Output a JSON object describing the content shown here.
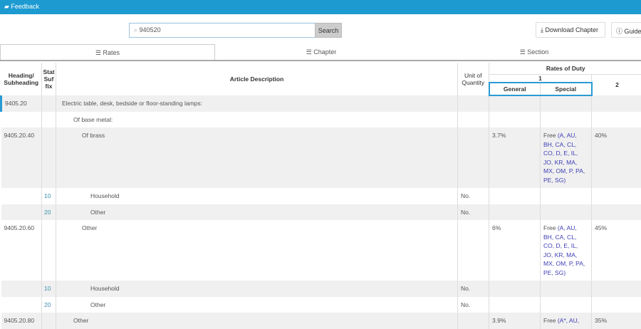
{
  "header": {
    "feedback": "Feedback"
  },
  "search": {
    "value": "940520",
    "button": "Search"
  },
  "actions": {
    "download": "Download Chapter",
    "guide": "Guide"
  },
  "tabs": [
    {
      "label": "Rates",
      "active": true
    },
    {
      "label": "Chapter"
    },
    {
      "label": "Section"
    }
  ],
  "table": {
    "headers": {
      "heading": "Heading/ Subheading",
      "stat": "Stat Suf fix",
      "desc": "Article Description",
      "unit": "Unit of Quantity",
      "rates": "Rates of Duty",
      "col1": "1",
      "general": "General",
      "special": "Special",
      "col2": "2"
    },
    "rows": [
      {
        "heading": "9405.20",
        "stat": "",
        "desc": "Electric table, desk, bedside or floor-standing lamps:",
        "indent": 0,
        "unit": "",
        "general": "",
        "special": "",
        "col2": ""
      },
      {
        "heading": "",
        "stat": "",
        "desc": "Of base metal:",
        "indent": 1,
        "unit": "",
        "general": "",
        "special": "",
        "col2": ""
      },
      {
        "heading": "9405.20.40",
        "stat": "",
        "desc": "Of brass",
        "indent": 2,
        "unit": "",
        "general": "3.7%",
        "special": "Free (A, AU, BH, CA, CL, CO, D, E, IL, JO, KR, MA, MX, OM, P, PA, PE, SG)",
        "col2": "40%"
      },
      {
        "heading": "",
        "stat": "10",
        "desc": "Household",
        "indent": 3,
        "unit": "No.",
        "general": "",
        "special": "",
        "col2": ""
      },
      {
        "heading": "",
        "stat": "20",
        "desc": "Other",
        "indent": 3,
        "unit": "No.",
        "general": "",
        "special": "",
        "col2": ""
      },
      {
        "heading": "9405.20.60",
        "stat": "",
        "desc": "Other",
        "indent": 2,
        "unit": "",
        "general": "6%",
        "special": "Free (A, AU, BH, CA, CL, CO, D, E, IL, JO, KR, MA, MX, OM, P, PA, PE, SG)",
        "col2": "45%"
      },
      {
        "heading": "",
        "stat": "10",
        "desc": "Household",
        "indent": 3,
        "unit": "No.",
        "general": "",
        "special": "",
        "col2": ""
      },
      {
        "heading": "",
        "stat": "20",
        "desc": "Other",
        "indent": 3,
        "unit": "No.",
        "general": "",
        "special": "",
        "col2": ""
      },
      {
        "heading": "9405.20.80",
        "stat": "",
        "desc": "Other",
        "indent": 1,
        "unit": "",
        "general": "3.9%",
        "special": "Free (A*, AU,",
        "col2": "35%"
      }
    ]
  },
  "colors": {
    "accent": "#1d9bd1",
    "link": "#3d3db5"
  }
}
